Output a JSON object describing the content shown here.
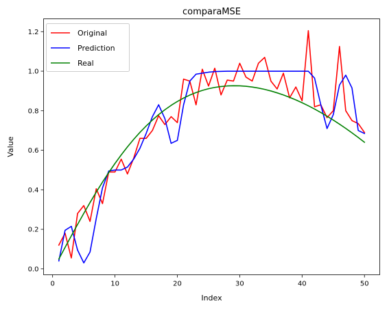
{
  "chart_data": {
    "type": "line",
    "title": "comparaMSE",
    "xlabel": "Index",
    "ylabel": "Value",
    "xlim": [
      -1.45,
      52.45
    ],
    "ylim": [
      -0.03,
      1.265
    ],
    "xticks": [
      0,
      10,
      20,
      30,
      40,
      50
    ],
    "yticks": [
      0.0,
      0.2,
      0.4,
      0.6,
      0.8,
      1.0,
      1.2
    ],
    "xtick_labels": [
      "0",
      "10",
      "20",
      "30",
      "40",
      "50"
    ],
    "ytick_labels": [
      "0.0",
      "0.2",
      "0.4",
      "0.6",
      "0.8",
      "1.0",
      "1.2"
    ],
    "grid": false,
    "legend_position": "top-left",
    "x": [
      1,
      2,
      3,
      4,
      5,
      6,
      7,
      8,
      9,
      10,
      11,
      12,
      13,
      14,
      15,
      16,
      17,
      18,
      19,
      20,
      21,
      22,
      23,
      24,
      25,
      26,
      27,
      28,
      29,
      30,
      31,
      32,
      33,
      34,
      35,
      36,
      37,
      38,
      39,
      40,
      41,
      42,
      43,
      44,
      45,
      46,
      47,
      48,
      49,
      50
    ],
    "series": [
      {
        "name": "Original",
        "color": "#ff0000",
        "values": [
          0.12,
          0.18,
          0.055,
          0.28,
          0.32,
          0.24,
          0.405,
          0.33,
          0.49,
          0.49,
          0.555,
          0.48,
          0.56,
          0.66,
          0.66,
          0.7,
          0.775,
          0.73,
          0.77,
          0.74,
          0.96,
          0.95,
          0.83,
          1.01,
          0.925,
          1.015,
          0.88,
          0.955,
          0.95,
          1.04,
          0.97,
          0.95,
          1.04,
          1.07,
          0.95,
          0.91,
          0.99,
          0.865,
          0.92,
          0.85,
          1.205,
          0.82,
          0.83,
          0.765,
          0.8,
          1.125,
          0.8,
          0.75,
          0.735,
          0.69
        ]
      },
      {
        "name": "Prediction",
        "color": "#0000ff",
        "values": [
          0.04,
          0.195,
          0.215,
          0.095,
          0.03,
          0.085,
          0.255,
          0.41,
          0.495,
          0.5,
          0.5,
          0.515,
          0.555,
          0.61,
          0.685,
          0.77,
          0.83,
          0.76,
          0.635,
          0.65,
          0.83,
          0.95,
          0.985,
          0.99,
          0.995,
          0.998,
          0.999,
          1.0,
          1.0,
          1.0,
          1.0,
          1.0,
          1.0,
          1.0,
          1.0,
          1.0,
          1.0,
          1.0,
          1.0,
          1.0,
          1.0,
          0.965,
          0.83,
          0.71,
          0.78,
          0.93,
          0.98,
          0.915,
          0.7,
          0.685
        ]
      },
      {
        "name": "Real",
        "color": "#008000",
        "values": [
          0.0493,
          0.1084,
          0.1669,
          0.2245,
          0.2808,
          0.3355,
          0.3883,
          0.4389,
          0.4872,
          0.5331,
          0.5764,
          0.6171,
          0.6551,
          0.6904,
          0.723,
          0.7529,
          0.7802,
          0.8049,
          0.8271,
          0.8468,
          0.8641,
          0.8792,
          0.892,
          0.9027,
          0.9113,
          0.9179,
          0.9225,
          0.9253,
          0.9264,
          0.9259,
          0.9237,
          0.9199,
          0.9146,
          0.9079,
          0.8999,
          0.8904,
          0.8797,
          0.8678,
          0.8547,
          0.8404,
          0.825,
          0.8085,
          0.7909,
          0.7723,
          0.7527,
          0.7321,
          0.7106,
          0.688,
          0.6646,
          0.6402
        ]
      }
    ]
  }
}
